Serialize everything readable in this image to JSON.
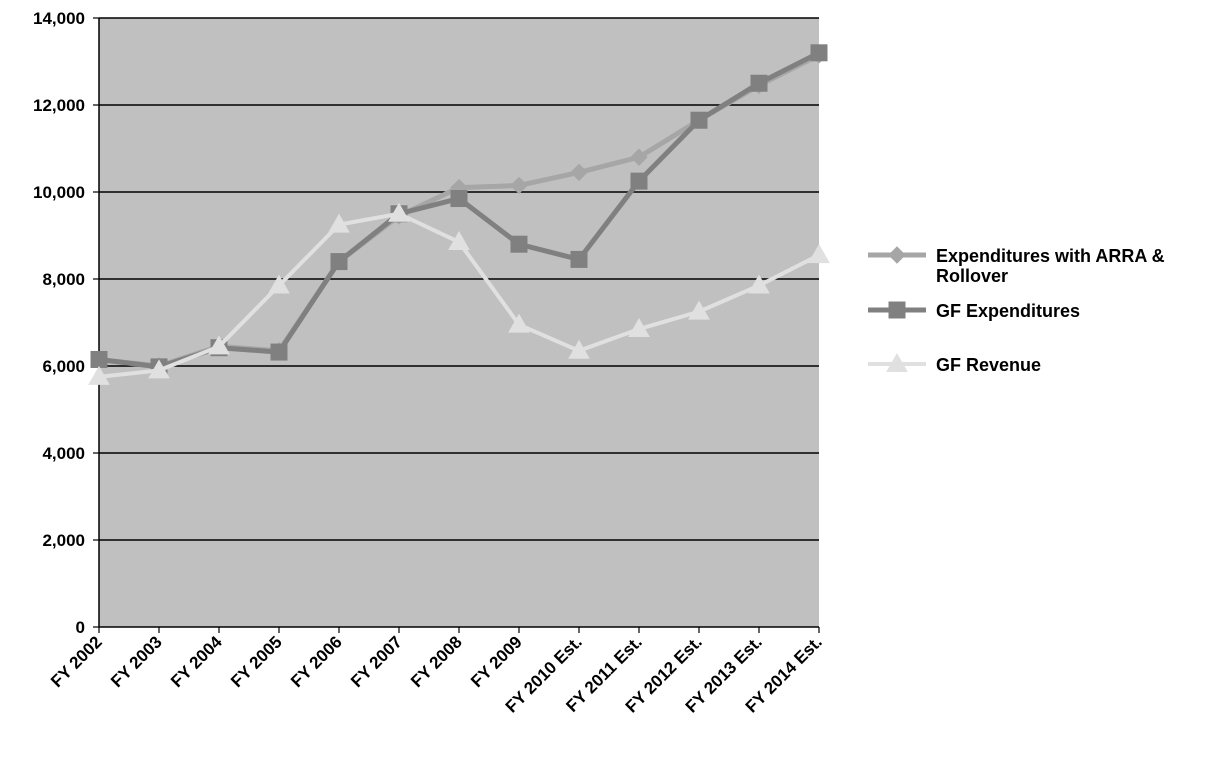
{
  "chart_data": {
    "type": "line",
    "title": "",
    "xlabel": "",
    "ylabel": "",
    "ylim": [
      0,
      14000
    ],
    "yticks": [
      0,
      2000,
      4000,
      6000,
      8000,
      10000,
      12000,
      14000
    ],
    "ytick_labels": [
      "0",
      "2,000",
      "4,000",
      "6,000",
      "8,000",
      "10,000",
      "12,000",
      "14,000"
    ],
    "grid": "horizontal",
    "legend_position": "right",
    "plot_background": "#c0c0c0",
    "categories": [
      "FY 2002",
      "FY 2003",
      "FY 2004",
      "FY 2005",
      "FY 2006",
      "FY 2007",
      "FY 2008",
      "FY 2009",
      "FY 2010 Est.",
      "FY 2011 Est.",
      "FY 2012 Est.",
      "FY 2013 Est.",
      "FY 2014 Est."
    ],
    "series": [
      {
        "name": "Expenditures with ARRA & Rollover",
        "legend_lines": [
          "Expenditures with ARRA &",
          "Rollover"
        ],
        "marker": "diamond",
        "color": "#a6a6a6",
        "values": [
          6150,
          6000,
          6450,
          6350,
          8400,
          9450,
          10100,
          10150,
          10450,
          10800,
          11650,
          12450,
          13150
        ]
      },
      {
        "name": "GF Expenditures",
        "marker": "square",
        "color": "#808080",
        "values": [
          6150,
          5980,
          6420,
          6320,
          8400,
          9500,
          9850,
          8800,
          8450,
          10250,
          11650,
          12500,
          13200
        ]
      },
      {
        "name": "GF Revenue",
        "marker": "triangle",
        "color": "#e0e0e0",
        "values": [
          5750,
          5900,
          6450,
          7850,
          9250,
          9500,
          8850,
          6950,
          6350,
          6850,
          7250,
          7850,
          8550
        ]
      }
    ]
  }
}
